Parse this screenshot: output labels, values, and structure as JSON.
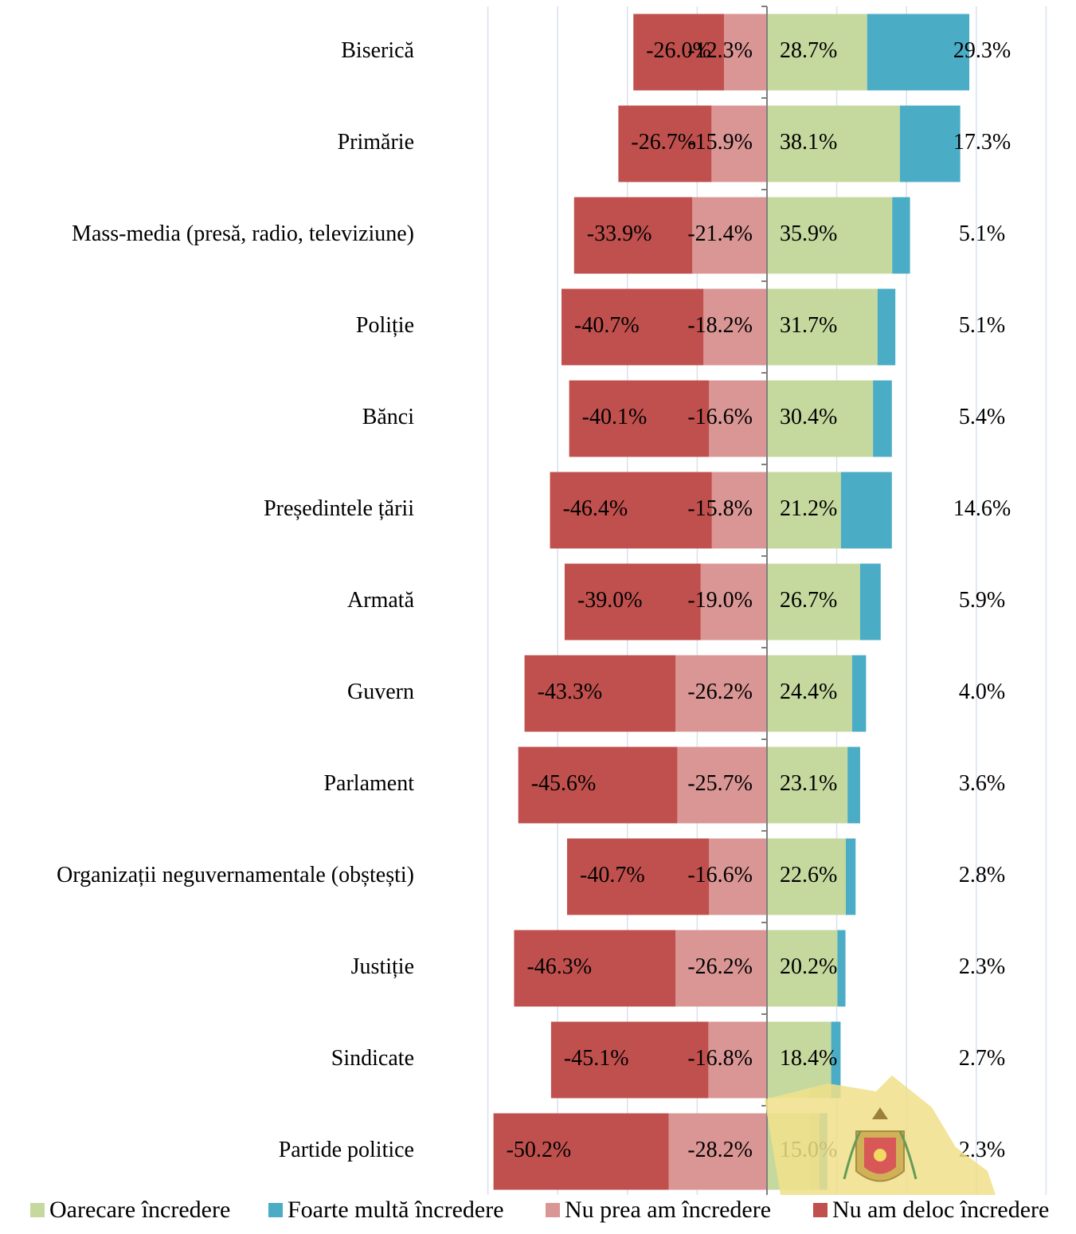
{
  "chart_data": {
    "type": "bar",
    "orientation": "horizontal",
    "stacked": "diverging",
    "categories": [
      "Biserică",
      "Primărie",
      "Mass-media (presă, radio, televiziune)",
      "Poliție",
      "Bănci",
      "Președintele țării",
      "Armată",
      "Guvern",
      "Parlament",
      "Organizații neguvernamentale (obștești)",
      "Justiție",
      "Sindicate",
      "Partide politice"
    ],
    "series": [
      {
        "name": "Oarecare încredere",
        "color": "#c5d99e",
        "values": [
          28.7,
          38.1,
          35.9,
          31.7,
          30.4,
          21.2,
          26.7,
          24.4,
          23.1,
          22.6,
          20.2,
          18.4,
          15.0
        ],
        "labels": [
          "28.7%",
          "38.1%",
          "35.9%",
          "31.7%",
          "30.4%",
          "21.2%",
          "26.7%",
          "24.4%",
          "23.1%",
          "22.6%",
          "20.2%",
          "18.4%",
          "15.0%"
        ]
      },
      {
        "name": "Foarte multă încredere",
        "color": "#4bacc6",
        "values": [
          29.3,
          17.3,
          5.1,
          5.1,
          5.4,
          14.6,
          5.9,
          4.0,
          3.6,
          2.8,
          2.3,
          2.7,
          2.3
        ],
        "labels": [
          "29.3%",
          "17.3%",
          "5.1%",
          "5.1%",
          "5.4%",
          "14.6%",
          "5.9%",
          "4.0%",
          "3.6%",
          "2.8%",
          "2.3%",
          "2.7%",
          "2.3%"
        ]
      },
      {
        "name": "Nu prea am încredere",
        "color": "#da9694",
        "values": [
          -12.3,
          -15.9,
          -21.4,
          -18.2,
          -16.6,
          -15.8,
          -19.0,
          -26.2,
          -25.7,
          -16.6,
          -26.2,
          -16.8,
          -28.2
        ],
        "labels": [
          "-12.3%",
          "-15.9%",
          "-21.4%",
          "-18.2%",
          "-16.6%",
          "-15.8%",
          "-19.0%",
          "-26.2%",
          "-25.7%",
          "-16.6%",
          "-26.2%",
          "-16.8%",
          "-28.2%"
        ]
      },
      {
        "name": "Nu am deloc încredere",
        "color": "#c0504d",
        "values": [
          -26.0,
          -26.7,
          -33.9,
          -40.7,
          -40.1,
          -46.4,
          -39.0,
          -43.3,
          -45.6,
          -40.7,
          -46.3,
          -45.1,
          -50.2
        ],
        "labels": [
          "-26.0%",
          "-26.7%",
          "-33.9%",
          "-40.7%",
          "-40.1%",
          "-46.4%",
          "-39.0%",
          "-43.3%",
          "-45.6%",
          "-40.7%",
          "-46.3%",
          "-45.1%",
          "-50.2%"
        ]
      }
    ],
    "xlim": [
      -80,
      80
    ],
    "grid": true,
    "legend_position": "bottom"
  }
}
